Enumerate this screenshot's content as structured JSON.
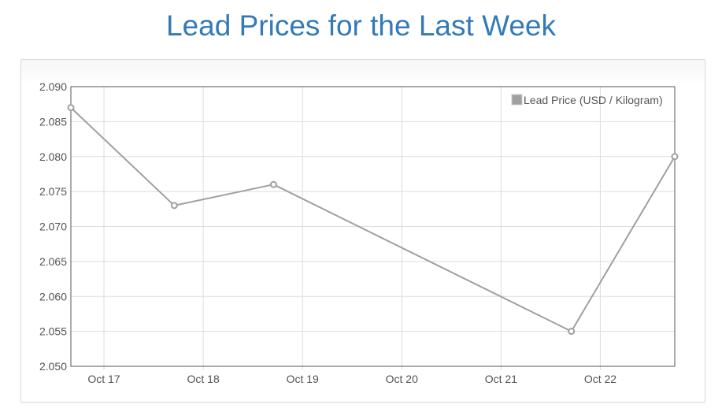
{
  "page": {
    "title": "Lead Prices for the Last Week"
  },
  "colors": {
    "title": "#337ab7",
    "series_line": "#a0a0a0",
    "grid": "#dddddd",
    "axis": "#545454"
  },
  "chart_data": {
    "type": "line",
    "title": "Lead Prices for the Last Week",
    "xlabel": "",
    "ylabel": "",
    "x_ticks": [
      "Oct 17",
      "Oct 18",
      "Oct 19",
      "Oct 20",
      "Oct 21",
      "Oct 22"
    ],
    "xlim": [
      "2023-10-16 16:00",
      "2023-10-22 18:00"
    ],
    "ylim": [
      2.05,
      2.09
    ],
    "y_ticks": [
      "2.090",
      "2.085",
      "2.080",
      "2.075",
      "2.070",
      "2.065",
      "2.060",
      "2.055",
      "2.050"
    ],
    "grid": true,
    "legend_position": "top-right",
    "series": [
      {
        "name": "Lead Price (USD / Kilogram)",
        "color": "#a0a0a0",
        "points": [
          {
            "x": "2023-10-16 16:00",
            "y": 2.087
          },
          {
            "x": "2023-10-17 17:00",
            "y": 2.073
          },
          {
            "x": "2023-10-18 17:00",
            "y": 2.076
          },
          {
            "x": "2023-10-21 17:00",
            "y": 2.055
          },
          {
            "x": "2023-10-22 18:00",
            "y": 2.08
          }
        ]
      }
    ]
  }
}
